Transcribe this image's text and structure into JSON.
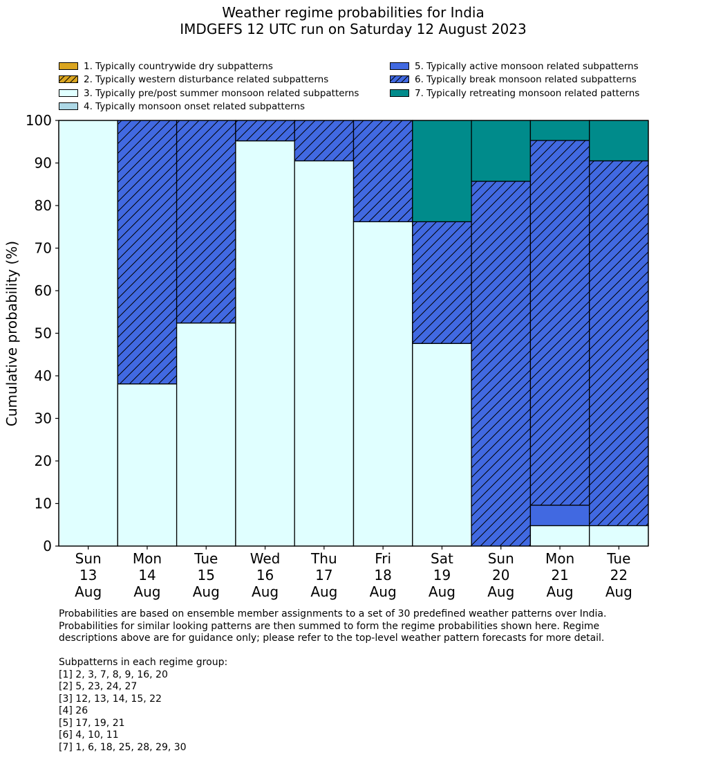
{
  "title_lines": [
    "Weather regime probabilities for India",
    "IMDGEFS 12 UTC run on Saturday 12 August 2023"
  ],
  "colors": {
    "dry": "#DAA520",
    "western": "#DAA520",
    "prepost": "#E0FFFF",
    "onset": "#ADD8E6",
    "active": "#4169E1",
    "break": "#4169E1",
    "retreating": "#008B8B"
  },
  "legend": [
    {
      "label": "1. Typically countrywide dry subpatterns",
      "color_key": "dry",
      "hatched": false
    },
    {
      "label": "2. Typically western disturbance related subpatterns",
      "color_key": "western",
      "hatched": true
    },
    {
      "label": "3. Typically pre/post summer monsoon related subpatterns",
      "color_key": "prepost",
      "hatched": false
    },
    {
      "label": "4. Typically monsoon onset related subpatterns",
      "color_key": "onset",
      "hatched": false
    },
    {
      "label": "5. Typically active monsoon related subpatterns",
      "color_key": "active",
      "hatched": false
    },
    {
      "label": "6. Typically break monsoon related subpatterns",
      "color_key": "break",
      "hatched": true
    },
    {
      "label": "7. Typically retreating monsoon related patterns",
      "color_key": "retreating",
      "hatched": false
    }
  ],
  "chart_data": {
    "type": "bar",
    "stacked": true,
    "ylabel": "Cumulative probability (%)",
    "ylim": [
      0,
      100
    ],
    "yticks": [
      0,
      10,
      20,
      30,
      40,
      50,
      60,
      70,
      80,
      90,
      100
    ],
    "categories": [
      [
        "Sun",
        "13",
        "Aug"
      ],
      [
        "Mon",
        "14",
        "Aug"
      ],
      [
        "Tue",
        "15",
        "Aug"
      ],
      [
        "Wed",
        "16",
        "Aug"
      ],
      [
        "Thu",
        "17",
        "Aug"
      ],
      [
        "Fri",
        "18",
        "Aug"
      ],
      [
        "Sat",
        "19",
        "Aug"
      ],
      [
        "Sun",
        "20",
        "Aug"
      ],
      [
        "Mon",
        "21",
        "Aug"
      ],
      [
        "Tue",
        "22",
        "Aug"
      ]
    ],
    "series": [
      {
        "color_key": "dry",
        "hatched": false,
        "values": [
          0,
          0,
          0,
          0,
          0,
          0,
          0,
          0,
          0,
          0
        ]
      },
      {
        "color_key": "western",
        "hatched": true,
        "values": [
          0,
          0,
          0,
          0,
          0,
          0,
          0,
          0,
          0,
          0
        ]
      },
      {
        "color_key": "prepost",
        "hatched": false,
        "values": [
          100,
          38.1,
          52.4,
          95.2,
          90.5,
          76.2,
          47.6,
          0,
          4.8,
          4.8
        ]
      },
      {
        "color_key": "onset",
        "hatched": false,
        "values": [
          0,
          0,
          0,
          0,
          0,
          0,
          0,
          0,
          0,
          0
        ]
      },
      {
        "color_key": "active",
        "hatched": false,
        "values": [
          0,
          0,
          0,
          0,
          0,
          0,
          0,
          0,
          4.8,
          0
        ]
      },
      {
        "color_key": "break",
        "hatched": true,
        "values": [
          0,
          61.9,
          47.6,
          4.8,
          9.5,
          23.8,
          28.6,
          85.7,
          85.7,
          85.7
        ]
      },
      {
        "color_key": "retreating",
        "hatched": false,
        "values": [
          0,
          0,
          0,
          0,
          0,
          0,
          23.8,
          14.3,
          4.7,
          9.5
        ]
      }
    ]
  },
  "notes": {
    "paragraph": [
      "Probabilities are based on ensemble member assignments to a set of 30 predefined weather patterns over India.",
      "Probabilities for similar looking patterns are then summed to form the regime probabilities shown here. Regime",
      "descriptions above are for guidance only; please refer to the top-level weather pattern forecasts for more detail."
    ],
    "groups_heading": "Subpatterns in each regime group:",
    "groups": [
      "[1] 2, 3, 7, 8, 9, 16, 20",
      "[2] 5, 23, 24, 27",
      "[3] 12, 13, 14, 15, 22",
      "[4] 26",
      "[5] 17, 19, 21",
      "[6] 4, 10, 11",
      "[7] 1, 6, 18, 25, 28, 29, 30"
    ]
  }
}
